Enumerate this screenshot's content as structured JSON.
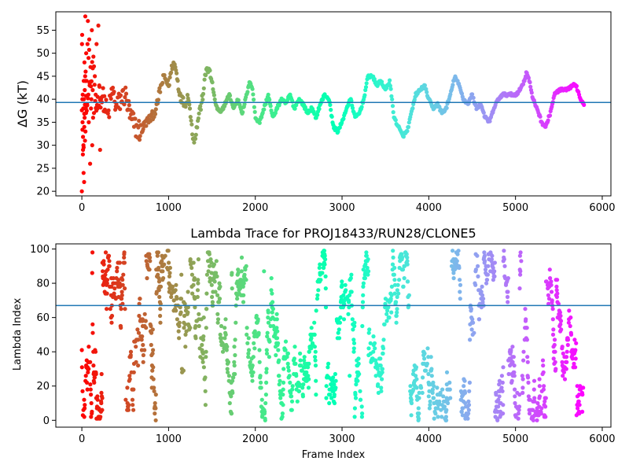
{
  "chart_data": [
    {
      "type": "scatter",
      "title": "",
      "xlabel": "",
      "ylabel": "ΔG (kT)",
      "xlim": [
        -300,
        6100
      ],
      "ylim": [
        19,
        59
      ],
      "xticks": [
        0,
        1000,
        2000,
        3000,
        4000,
        5000,
        6000
      ],
      "yticks": [
        20,
        25,
        30,
        35,
        40,
        45,
        50,
        55
      ],
      "hline": 39.3,
      "hline_color": "#1f77b4",
      "colormap": "rainbow (reversed over frame index: red at start, violet at end)",
      "grid": false,
      "frames": 5800,
      "trace_keypoints": {
        "x": [
          0,
          20,
          40,
          60,
          80,
          100,
          130,
          160,
          200,
          250,
          300,
          350,
          400,
          450,
          500,
          560,
          620,
          680,
          740,
          800,
          860,
          900,
          950,
          1000,
          1050,
          1080,
          1120,
          1150,
          1190,
          1230,
          1260,
          1290,
          1320,
          1350,
          1380,
          1410,
          1440,
          1470,
          1500,
          1530,
          1560,
          1600,
          1650,
          1700,
          1750,
          1800,
          1850,
          1900,
          1940,
          1970,
          2000,
          2050,
          2100,
          2150,
          2200,
          2250,
          2300,
          2350,
          2400,
          2450,
          2500,
          2550,
          2600,
          2650,
          2700,
          2750,
          2800,
          2850,
          2900,
          2950,
          3000,
          3050,
          3100,
          3150,
          3200,
          3250,
          3300,
          3350,
          3400,
          3450,
          3500,
          3550,
          3600,
          3650,
          3700,
          3750,
          3800,
          3850,
          3900,
          3950,
          4000,
          4050,
          4100,
          4150,
          4200,
          4250,
          4300,
          4350,
          4400,
          4450,
          4500,
          4550,
          4600,
          4650,
          4700,
          4750,
          4800,
          4850,
          4900,
          4950,
          5000,
          5050,
          5100,
          5130,
          5160,
          5200,
          5250,
          5300,
          5350,
          5400,
          5450,
          5500,
          5550,
          5600,
          5650,
          5700,
          5750,
          5790
        ],
        "y": [
          40,
          28,
          45,
          35,
          50,
          42,
          48,
          38,
          41,
          40,
          36,
          42,
          38,
          40,
          41,
          36,
          34,
          33,
          35,
          36,
          38,
          42,
          45,
          43,
          48,
          47,
          42,
          40,
          39,
          41,
          35,
          31,
          33,
          37,
          39,
          43,
          47,
          46,
          44,
          40,
          38,
          37,
          39,
          41,
          38,
          40,
          37,
          41,
          44,
          42,
          36,
          35,
          38,
          41,
          36,
          38,
          40,
          39,
          41,
          38,
          40,
          39,
          37,
          38,
          36,
          39,
          41,
          40,
          34,
          33,
          35,
          38,
          40,
          36,
          37,
          40,
          45,
          45,
          43,
          44,
          42,
          44,
          36,
          34,
          32,
          33,
          37,
          41,
          42,
          43,
          40,
          38,
          39,
          37,
          38,
          41,
          45,
          43,
          40,
          39,
          41,
          38,
          39,
          36,
          35,
          38,
          40,
          41,
          41,
          41,
          41,
          42,
          44,
          46,
          44,
          40,
          38,
          35,
          34,
          37,
          41,
          42,
          42,
          42,
          43,
          43,
          40,
          39
        ]
      },
      "early_scatter_points": {
        "x": [
          0,
          2,
          4,
          6,
          8,
          10,
          12,
          14,
          16,
          18,
          20,
          22,
          24,
          26,
          28,
          30,
          32,
          34,
          36,
          38,
          40,
          42,
          44,
          46,
          48,
          50,
          55,
          60,
          65,
          70,
          75,
          80,
          85,
          90,
          95,
          100,
          105,
          110,
          115,
          120,
          125,
          130,
          140,
          150,
          160,
          170,
          180,
          190,
          200,
          210,
          220
        ],
        "y": [
          20,
          52,
          54,
          40,
          35,
          41,
          28,
          29,
          38,
          30,
          24,
          44,
          40,
          22,
          34,
          48,
          36,
          42,
          31,
          45,
          58,
          33,
          46,
          38,
          37,
          50,
          44,
          39,
          52,
          57,
          41,
          35,
          53,
          43,
          26,
          47,
          38,
          40,
          55,
          30,
          42,
          36,
          37,
          45,
          41,
          52,
          38,
          56,
          43,
          29,
          40
        ]
      }
    },
    {
      "type": "scatter",
      "title": "Lambda Trace for PROJ18433/RUN28/CLONE5",
      "xlabel": "Frame Index",
      "ylabel": "Lambda Index",
      "xlim": [
        -300,
        6100
      ],
      "ylim": [
        -4,
        103
      ],
      "xticks": [
        0,
        1000,
        2000,
        3000,
        4000,
        5000,
        6000
      ],
      "yticks": [
        0,
        20,
        40,
        60,
        80,
        100
      ],
      "hline": 67,
      "hline_color": "#1f77b4",
      "colormap": "rainbow (reversed over frame index: red at start, violet at end)",
      "grid": false,
      "frames": 5800,
      "lambda_range": [
        0,
        99
      ],
      "sampled_points": 2900
    }
  ]
}
